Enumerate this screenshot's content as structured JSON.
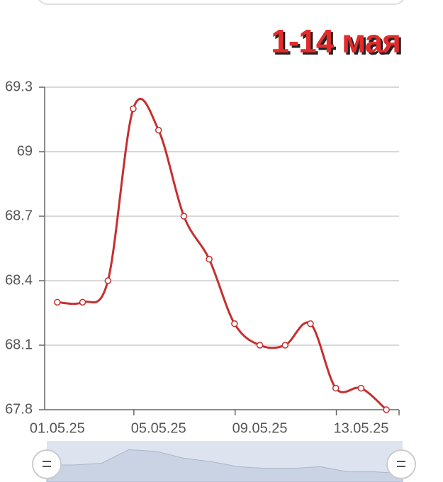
{
  "chart_data": {
    "type": "line",
    "title": "1-14 мая",
    "categories": [
      "01.05.25",
      null,
      null,
      null,
      "05.05.25",
      null,
      null,
      null,
      "09.05.25",
      null,
      null,
      null,
      "13.05.25",
      null
    ],
    "series": [
      {
        "color": "#c62f2f",
        "values": [
          68.3,
          68.3,
          68.4,
          69.2,
          69.1,
          68.7,
          68.5,
          68.2,
          68.1,
          68.1,
          68.2,
          67.9,
          67.9,
          67.8
        ]
      }
    ],
    "ylim": [
      67.8,
      69.3
    ],
    "yticks": [
      67.8,
      68.1,
      68.4,
      68.7,
      69,
      69.3
    ],
    "grid": true,
    "smooth": true
  }
}
